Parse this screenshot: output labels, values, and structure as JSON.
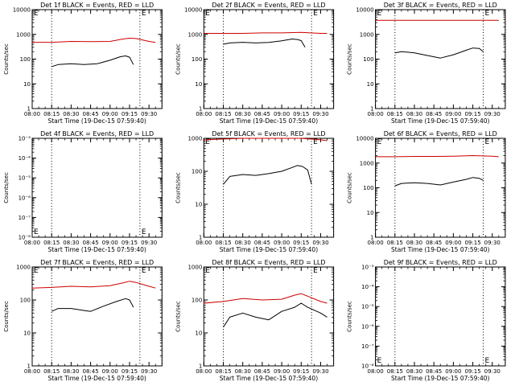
{
  "figure": {
    "xtick_labels": [
      "08:00",
      "08:15",
      "08:30",
      "08:45",
      "09:00",
      "09:15",
      "09:30"
    ],
    "xlabel": "Start Time (19-Dec-15 07:59:40)",
    "ylabel": "Counts/sec"
  },
  "colors": {
    "events": "#000000",
    "lld": "#cc0000",
    "axes": "#000000"
  },
  "chart_data": [
    {
      "type": "line",
      "title": "Det 1f BLACK = Events, RED = LLD",
      "xlim": [
        "08:00",
        "09:40"
      ],
      "ylim": [
        1,
        10000
      ],
      "log_y": true,
      "ytick_labels": [
        "1",
        "10",
        "100",
        "1000",
        "10000"
      ],
      "markers": [
        "08:15",
        "09:23",
        "09:40"
      ],
      "E_label": "E",
      "series": [
        {
          "name": "Events",
          "x": [
            "08:15",
            "08:20",
            "08:30",
            "08:40",
            "08:50",
            "09:00",
            "09:08",
            "09:12",
            "09:15",
            "09:18"
          ],
          "y": [
            50,
            60,
            65,
            60,
            65,
            90,
            125,
            135,
            120,
            60
          ]
        },
        {
          "name": "LLD",
          "x": [
            "08:00",
            "08:15",
            "08:30",
            "08:45",
            "09:00",
            "09:10",
            "09:15",
            "09:20",
            "09:30",
            "09:35"
          ],
          "y": [
            480,
            480,
            520,
            510,
            520,
            650,
            700,
            680,
            520,
            470
          ]
        }
      ]
    },
    {
      "type": "line",
      "title": "Det 2f BLACK = Events, RED = LLD",
      "xlim": [
        "08:00",
        "09:40"
      ],
      "ylim": [
        1,
        10000
      ],
      "log_y": true,
      "ytick_labels": [
        "1",
        "10",
        "100",
        "1000",
        "10000"
      ],
      "markers": [
        "08:15",
        "09:23",
        "09:40"
      ],
      "E_label": "E",
      "series": [
        {
          "name": "Events",
          "x": [
            "08:15",
            "08:20",
            "08:30",
            "08:40",
            "08:50",
            "09:00",
            "09:08",
            "09:12",
            "09:15",
            "09:18"
          ],
          "y": [
            400,
            450,
            480,
            450,
            470,
            550,
            650,
            620,
            560,
            300
          ]
        },
        {
          "name": "LLD",
          "x": [
            "08:00",
            "08:15",
            "08:30",
            "08:45",
            "09:00",
            "09:15",
            "09:30",
            "09:35"
          ],
          "y": [
            1100,
            1100,
            1100,
            1150,
            1150,
            1200,
            1100,
            1100
          ]
        }
      ]
    },
    {
      "type": "line",
      "title": "Det 3f BLACK = Events, RED = LLD",
      "xlim": [
        "08:00",
        "09:40"
      ],
      "ylim": [
        1,
        10000
      ],
      "log_y": true,
      "ytick_labels": [
        "1",
        "10",
        "100",
        "1000",
        "10000"
      ],
      "markers": [
        "08:15",
        "09:23",
        "09:40"
      ],
      "E_label": "E",
      "series": [
        {
          "name": "Events",
          "x": [
            "08:15",
            "08:20",
            "08:30",
            "08:40",
            "08:50",
            "09:00",
            "09:10",
            "09:15",
            "09:20",
            "09:23"
          ],
          "y": [
            180,
            200,
            180,
            140,
            110,
            150,
            230,
            280,
            270,
            200
          ]
        },
        {
          "name": "LLD",
          "x": [
            "08:00",
            "08:15",
            "08:30",
            "08:45",
            "09:00",
            "09:15",
            "09:30",
            "09:35"
          ],
          "y": [
            3700,
            3700,
            3700,
            3700,
            3700,
            3700,
            3700,
            3700
          ]
        }
      ]
    },
    {
      "type": "line",
      "title": "Det 4f BLACK = Events, RED = LLD",
      "xlim": [
        "08:00",
        "09:40"
      ],
      "ylim": [
        1e-08,
        0.001
      ],
      "log_y": true,
      "ytick_labels": [
        "10⁻⁸",
        "10⁻⁷",
        "10⁻⁶",
        "10⁻⁵",
        "10⁻⁴",
        "10⁻³"
      ],
      "markers": [
        "08:15",
        "09:23",
        "09:40"
      ],
      "E_label": "E",
      "series": []
    },
    {
      "type": "line",
      "title": "Det 5f BLACK = Events, RED = LLD",
      "xlim": [
        "08:00",
        "09:40"
      ],
      "ylim": [
        1,
        1000
      ],
      "log_y": true,
      "ytick_labels": [
        "1",
        "10",
        "100",
        "1000"
      ],
      "markers": [
        "08:15",
        "09:23",
        "09:40"
      ],
      "E_label": "E",
      "series": [
        {
          "name": "Events",
          "x": [
            "08:15",
            "08:20",
            "08:30",
            "08:40",
            "08:50",
            "09:00",
            "09:08",
            "09:12",
            "09:16",
            "09:20",
            "09:23"
          ],
          "y": [
            40,
            70,
            80,
            75,
            85,
            100,
            130,
            150,
            140,
            110,
            40
          ]
        },
        {
          "name": "LLD",
          "x": [
            "08:00",
            "08:15",
            "08:30",
            "08:45",
            "09:00",
            "09:15",
            "09:30",
            "09:35"
          ],
          "y": [
            900,
            950,
            1000,
            1000,
            1000,
            1000,
            900,
            850
          ]
        }
      ]
    },
    {
      "type": "line",
      "title": "Det 6f BLACK = Events, RED = LLD",
      "xlim": [
        "08:00",
        "09:40"
      ],
      "ylim": [
        1,
        10000
      ],
      "log_y": true,
      "ytick_labels": [
        "1",
        "10",
        "100",
        "1000",
        "10000"
      ],
      "markers": [
        "08:15",
        "09:23",
        "09:40"
      ],
      "E_label": "E",
      "series": [
        {
          "name": "Events",
          "x": [
            "08:15",
            "08:20",
            "08:30",
            "08:40",
            "08:50",
            "09:00",
            "09:10",
            "09:15",
            "09:20",
            "09:23"
          ],
          "y": [
            120,
            150,
            160,
            150,
            130,
            170,
            220,
            260,
            240,
            200
          ]
        },
        {
          "name": "LLD",
          "x": [
            "08:00",
            "08:15",
            "08:30",
            "08:45",
            "09:00",
            "09:15",
            "09:30",
            "09:35"
          ],
          "y": [
            1800,
            1800,
            1850,
            1850,
            1900,
            2000,
            1900,
            1800
          ]
        }
      ]
    },
    {
      "type": "line",
      "title": "Det 7f BLACK = Events, RED = LLD",
      "xlim": [
        "08:00",
        "09:40"
      ],
      "ylim": [
        1,
        1000
      ],
      "log_y": true,
      "ytick_labels": [
        "1",
        "10",
        "100",
        "1000"
      ],
      "markers": [
        "08:15",
        "09:23",
        "09:40"
      ],
      "E_label": "E",
      "series": [
        {
          "name": "Events",
          "x": [
            "08:15",
            "08:20",
            "08:30",
            "08:40",
            "08:45",
            "08:55",
            "09:05",
            "09:12",
            "09:15",
            "09:18"
          ],
          "y": [
            45,
            55,
            55,
            48,
            45,
            65,
            90,
            110,
            100,
            60
          ]
        },
        {
          "name": "LLD",
          "x": [
            "08:00",
            "08:15",
            "08:30",
            "08:45",
            "09:00",
            "09:10",
            "09:15",
            "09:20",
            "09:30",
            "09:35"
          ],
          "y": [
            230,
            240,
            260,
            250,
            270,
            330,
            370,
            340,
            260,
            230
          ]
        }
      ]
    },
    {
      "type": "line",
      "title": "Det 8f BLACK = Events, RED = LLD",
      "xlim": [
        "08:00",
        "09:40"
      ],
      "ylim": [
        1,
        1000
      ],
      "log_y": true,
      "ytick_labels": [
        "1",
        "10",
        "100",
        "1000"
      ],
      "markers": [
        "08:15",
        "09:23",
        "09:40"
      ],
      "E_label": "E",
      "series": [
        {
          "name": "Events",
          "x": [
            "08:15",
            "08:20",
            "08:30",
            "08:40",
            "08:50",
            "09:00",
            "09:10",
            "09:15",
            "09:20",
            "09:30",
            "09:35"
          ],
          "y": [
            15,
            30,
            40,
            30,
            25,
            45,
            60,
            80,
            60,
            40,
            30
          ]
        },
        {
          "name": "LLD",
          "x": [
            "08:00",
            "08:15",
            "08:30",
            "08:45",
            "09:00",
            "09:10",
            "09:15",
            "09:20",
            "09:30",
            "09:35"
          ],
          "y": [
            80,
            90,
            110,
            100,
            105,
            140,
            155,
            130,
            90,
            80
          ]
        }
      ]
    },
    {
      "type": "line",
      "title": "Det 9f BLACK = Events, RED = LLD",
      "xlim": [
        "08:00",
        "09:40"
      ],
      "ylim": [
        1e-08,
        0.001
      ],
      "log_y": true,
      "ytick_labels": [
        "10⁻⁸",
        "10⁻⁷",
        "10⁻⁶",
        "10⁻⁵",
        "10⁻⁴",
        "10⁻³"
      ],
      "markers": [
        "08:15",
        "09:23",
        "09:40"
      ],
      "E_label": "E",
      "series": []
    }
  ]
}
